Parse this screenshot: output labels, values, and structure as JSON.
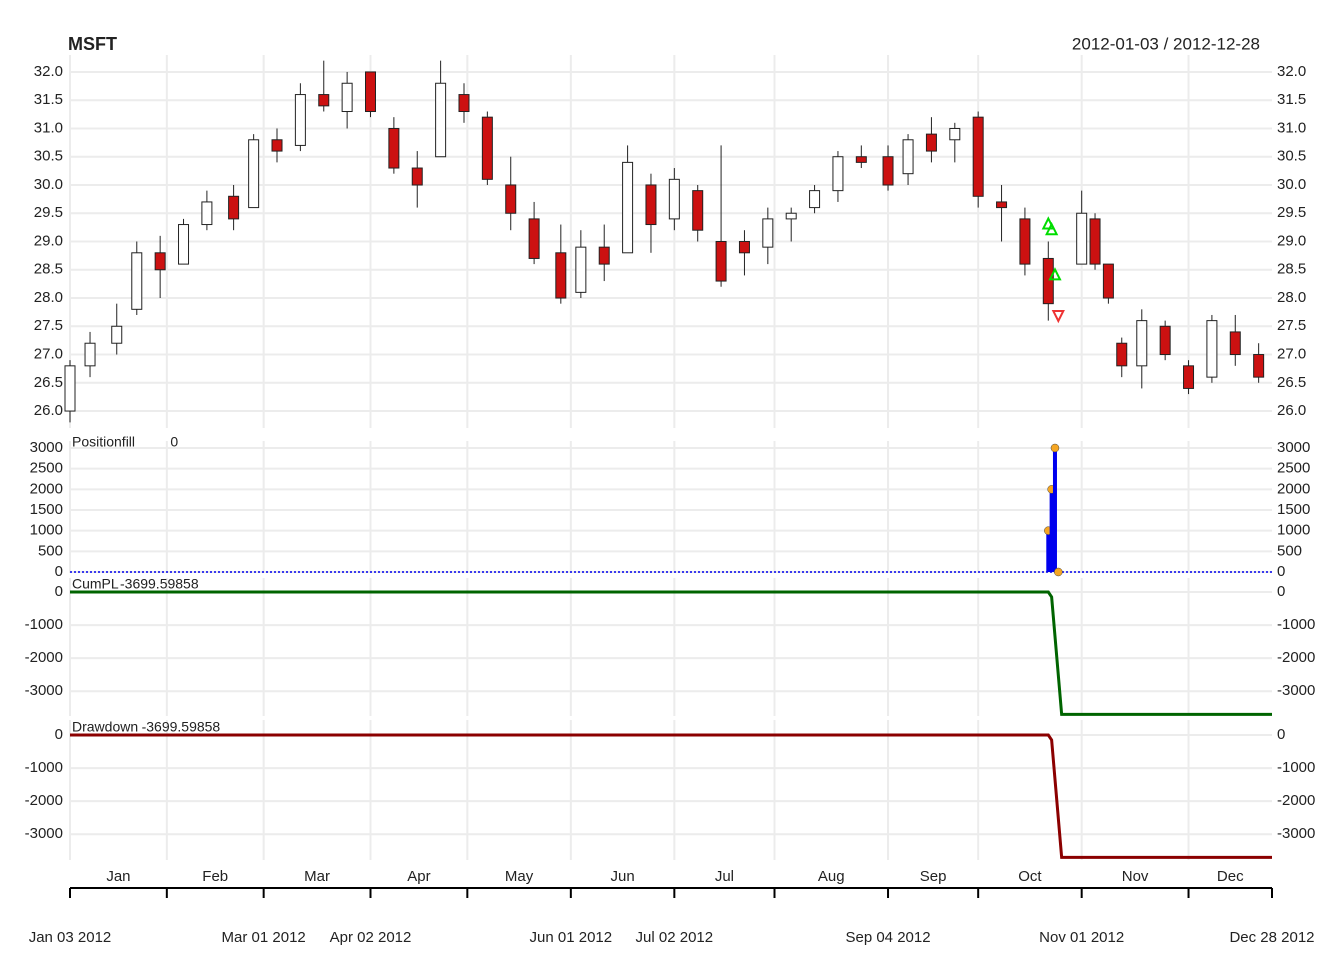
{
  "header": {
    "symbol": "MSFT",
    "range": "2012-01-03 / 2012-12-28"
  },
  "x_axis": {
    "xlim": [
      "2012-01-03",
      "2012-12-28"
    ],
    "month_ticks": [
      {
        "value": "2012-01-03",
        "label": "Jan"
      },
      {
        "value": "2012-02-01",
        "label": "Feb"
      },
      {
        "value": "2012-03-01",
        "label": "Mar"
      },
      {
        "value": "2012-04-02",
        "label": "Apr"
      },
      {
        "value": "2012-05-01",
        "label": "May"
      },
      {
        "value": "2012-06-01",
        "label": "Jun"
      },
      {
        "value": "2012-07-02",
        "label": "Jul"
      },
      {
        "value": "2012-08-01",
        "label": "Aug"
      },
      {
        "value": "2012-09-04",
        "label": "Sep"
      },
      {
        "value": "2012-10-01",
        "label": "Oct"
      },
      {
        "value": "2012-11-01",
        "label": "Nov"
      },
      {
        "value": "2012-12-03",
        "label": "Dec"
      }
    ],
    "date_ticks": [
      {
        "value": "2012-01-03",
        "label": "Jan 03 2012"
      },
      {
        "value": "2012-03-01",
        "label": "Mar 01 2012"
      },
      {
        "value": "2012-04-02",
        "label": "Apr 02 2012"
      },
      {
        "value": "2012-06-01",
        "label": "Jun 01 2012"
      },
      {
        "value": "2012-07-02",
        "label": "Jul 02 2012"
      },
      {
        "value": "2012-09-04",
        "label": "Sep 04 2012"
      },
      {
        "value": "2012-11-01",
        "label": "Nov 01 2012"
      },
      {
        "value": "2012-12-28",
        "label": "Dec 28 2012"
      }
    ]
  },
  "chart_data": [
    {
      "type": "candlestick",
      "up_color": "#ffffff",
      "down_color": "#cc1111",
      "x": [
        "2012-01-03",
        "2012-01-09",
        "2012-01-17",
        "2012-01-23",
        "2012-01-30",
        "2012-02-06",
        "2012-02-13",
        "2012-02-21",
        "2012-02-27",
        "2012-03-05",
        "2012-03-12",
        "2012-03-19",
        "2012-03-26",
        "2012-04-02",
        "2012-04-09",
        "2012-04-16",
        "2012-04-23",
        "2012-04-30",
        "2012-05-07",
        "2012-05-14",
        "2012-05-21",
        "2012-05-29",
        "2012-06-04",
        "2012-06-11",
        "2012-06-18",
        "2012-06-25",
        "2012-07-02",
        "2012-07-09",
        "2012-07-16",
        "2012-07-23",
        "2012-07-30",
        "2012-08-06",
        "2012-08-13",
        "2012-08-20",
        "2012-08-27",
        "2012-09-04",
        "2012-09-10",
        "2012-09-17",
        "2012-09-24",
        "2012-10-01",
        "2012-10-08",
        "2012-10-15",
        "2012-10-22",
        "2012-11-01",
        "2012-11-05",
        "2012-11-09",
        "2012-11-13",
        "2012-11-19",
        "2012-11-26",
        "2012-12-03",
        "2012-12-10",
        "2012-12-17",
        "2012-12-24"
      ],
      "open": [
        26.0,
        26.8,
        27.2,
        27.8,
        28.8,
        28.6,
        29.3,
        29.8,
        29.6,
        30.8,
        30.7,
        31.6,
        31.3,
        32.0,
        31.0,
        30.3,
        30.5,
        31.6,
        31.2,
        30.0,
        29.4,
        28.8,
        28.1,
        28.9,
        28.8,
        30.0,
        29.4,
        29.9,
        29.0,
        29.0,
        28.9,
        29.4,
        29.6,
        29.9,
        30.5,
        30.5,
        30.2,
        30.9,
        30.8,
        31.2,
        29.7,
        29.4,
        28.7,
        28.6,
        29.4,
        28.6,
        27.2,
        26.8,
        27.5,
        26.8,
        26.6,
        27.4,
        27.0
      ],
      "high": [
        26.9,
        27.4,
        27.9,
        29.0,
        29.1,
        29.4,
        29.9,
        30.0,
        30.9,
        31.0,
        31.8,
        32.2,
        32.0,
        32.0,
        31.2,
        30.6,
        32.2,
        31.8,
        31.3,
        30.5,
        29.7,
        29.3,
        29.2,
        29.3,
        30.7,
        30.2,
        30.3,
        30.0,
        30.7,
        29.2,
        29.6,
        29.6,
        30.0,
        30.6,
        30.7,
        30.7,
        30.9,
        31.2,
        31.1,
        31.3,
        30.0,
        29.6,
        29.0,
        29.9,
        29.5,
        28.6,
        27.3,
        27.8,
        27.6,
        26.9,
        27.7,
        27.7,
        27.2
      ],
      "low": [
        25.8,
        26.6,
        27.0,
        27.7,
        28.0,
        28.6,
        29.2,
        29.2,
        29.6,
        30.4,
        30.6,
        31.3,
        31.0,
        31.2,
        30.2,
        29.6,
        30.5,
        31.1,
        30.0,
        29.2,
        28.6,
        27.9,
        28.0,
        28.3,
        28.8,
        28.8,
        29.2,
        29.0,
        28.2,
        28.4,
        28.6,
        29.0,
        29.5,
        29.7,
        30.3,
        29.9,
        30.0,
        30.4,
        30.4,
        29.6,
        29.0,
        28.4,
        27.6,
        28.6,
        28.5,
        27.9,
        26.6,
        26.4,
        26.9,
        26.3,
        26.5,
        26.8,
        26.5
      ],
      "close": [
        26.8,
        27.2,
        27.5,
        28.8,
        28.5,
        29.3,
        29.7,
        29.4,
        30.8,
        30.6,
        31.6,
        31.4,
        31.8,
        31.3,
        30.3,
        30.0,
        31.8,
        31.3,
        30.1,
        29.5,
        28.7,
        28.0,
        28.9,
        28.6,
        30.4,
        29.3,
        30.1,
        29.2,
        28.3,
        28.8,
        29.4,
        29.5,
        29.9,
        30.5,
        30.4,
        30.0,
        30.8,
        30.6,
        31.0,
        29.8,
        29.6,
        28.6,
        27.9,
        29.5,
        28.6,
        28.0,
        26.8,
        27.6,
        27.0,
        26.4,
        27.6,
        27.0,
        26.6
      ],
      "signals": [
        {
          "x": "2012-10-22",
          "value": 29.3,
          "direction": "up",
          "color": "#00dd00"
        },
        {
          "x": "2012-10-23",
          "value": 29.2,
          "direction": "up",
          "color": "#00dd00"
        },
        {
          "x": "2012-10-24",
          "value": 28.4,
          "direction": "up",
          "color": "#00dd00"
        },
        {
          "x": "2012-10-25",
          "value": 27.7,
          "direction": "down",
          "color": "#ee3333"
        }
      ],
      "ylim": [
        25.7,
        32.3
      ],
      "yticks": [
        {
          "value": 26,
          "label": "26.0"
        },
        {
          "value": 26.5,
          "label": "26.5"
        },
        {
          "value": 27,
          "label": "27.0"
        },
        {
          "value": 27.5,
          "label": "27.5"
        },
        {
          "value": 28,
          "label": "28.0"
        },
        {
          "value": 28.5,
          "label": "28.5"
        },
        {
          "value": 29,
          "label": "29.0"
        },
        {
          "value": 29.5,
          "label": "29.5"
        },
        {
          "value": 30,
          "label": "30.0"
        },
        {
          "value": 30.5,
          "label": "30.5"
        },
        {
          "value": 31,
          "label": "31.0"
        },
        {
          "value": 31.5,
          "label": "31.5"
        },
        {
          "value": 32,
          "label": "32.0"
        }
      ]
    },
    {
      "type": "bar",
      "title": "Positionfill",
      "last_value": 0,
      "color": "#0000ee",
      "marker_color": "#f5a623",
      "x": [
        "2012-10-22",
        "2012-10-23",
        "2012-10-24",
        "2012-10-25"
      ],
      "values": [
        1000,
        2000,
        3000,
        0
      ],
      "ylim": [
        0,
        3000
      ],
      "yticks": [
        0,
        500,
        1000,
        1500,
        2000,
        2500,
        3000
      ]
    },
    {
      "type": "line",
      "title": "CumPL",
      "last_value": -3699.59858,
      "color": "#006400",
      "x": [
        "2012-01-03",
        "2012-10-22",
        "2012-10-23",
        "2012-10-26",
        "2012-12-28"
      ],
      "values": [
        0,
        0,
        -150,
        -3699.59858,
        -3699.59858
      ],
      "ylim": [
        -3750,
        0
      ],
      "yticks": [
        0,
        -1000,
        -2000,
        -3000
      ]
    },
    {
      "type": "line",
      "title": "Drawdown",
      "last_value": -3699.59858,
      "color": "#8b0000",
      "x": [
        "2012-01-03",
        "2012-10-22",
        "2012-10-23",
        "2012-10-26",
        "2012-12-28"
      ],
      "values": [
        0,
        0,
        -150,
        -3699.59858,
        -3699.59858
      ],
      "ylim": [
        -3750,
        0
      ],
      "yticks": [
        0,
        -1000,
        -2000,
        -3000
      ]
    }
  ]
}
